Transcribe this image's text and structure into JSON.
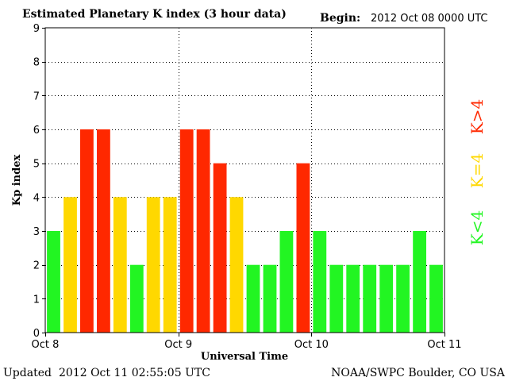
{
  "header": {
    "title": "Estimated Planetary K index (3 hour data)",
    "begin_label": "Begin:",
    "begin_value": "2012 Oct 08 0000 UTC"
  },
  "footer": {
    "updated_label": "Updated",
    "updated_value": "2012 Oct 11 02:55:05 UTC",
    "credit": "NOAA/SWPC Boulder, CO USA"
  },
  "legend": {
    "high": "K>4",
    "mid": "K=4",
    "low": "K<4"
  },
  "colors": {
    "low": "#22f522",
    "mid": "#ffd800",
    "high": "#ff2800"
  },
  "chart_data": {
    "type": "bar",
    "categories": [
      "Oct 8 00",
      "Oct 8 03",
      "Oct 8 06",
      "Oct 8 09",
      "Oct 8 12",
      "Oct 8 15",
      "Oct 8 18",
      "Oct 8 21",
      "Oct 9 00",
      "Oct 9 03",
      "Oct 9 06",
      "Oct 9 09",
      "Oct 9 12",
      "Oct 9 15",
      "Oct 9 18",
      "Oct 9 21",
      "Oct 10 00",
      "Oct 10 03",
      "Oct 10 06",
      "Oct 10 09",
      "Oct 10 12",
      "Oct 10 15",
      "Oct 10 18",
      "Oct 10 21"
    ],
    "values": [
      3,
      4,
      6,
      6,
      4,
      2,
      4,
      4,
      6,
      6,
      5,
      4,
      2,
      2,
      3,
      5,
      3,
      2,
      2,
      2,
      2,
      2,
      3,
      2
    ],
    "title": "Estimated Planetary K index (3 hour data)",
    "xlabel": "Universal Time",
    "ylabel": "Kp index",
    "ylim": [
      0,
      9
    ],
    "yticks": [
      "0",
      "1",
      "2",
      "3",
      "4",
      "5",
      "6",
      "7",
      "8",
      "9"
    ],
    "xticks": [
      "Oct 8",
      "Oct 9",
      "Oct 10",
      "Oct 11"
    ],
    "grid": true
  }
}
